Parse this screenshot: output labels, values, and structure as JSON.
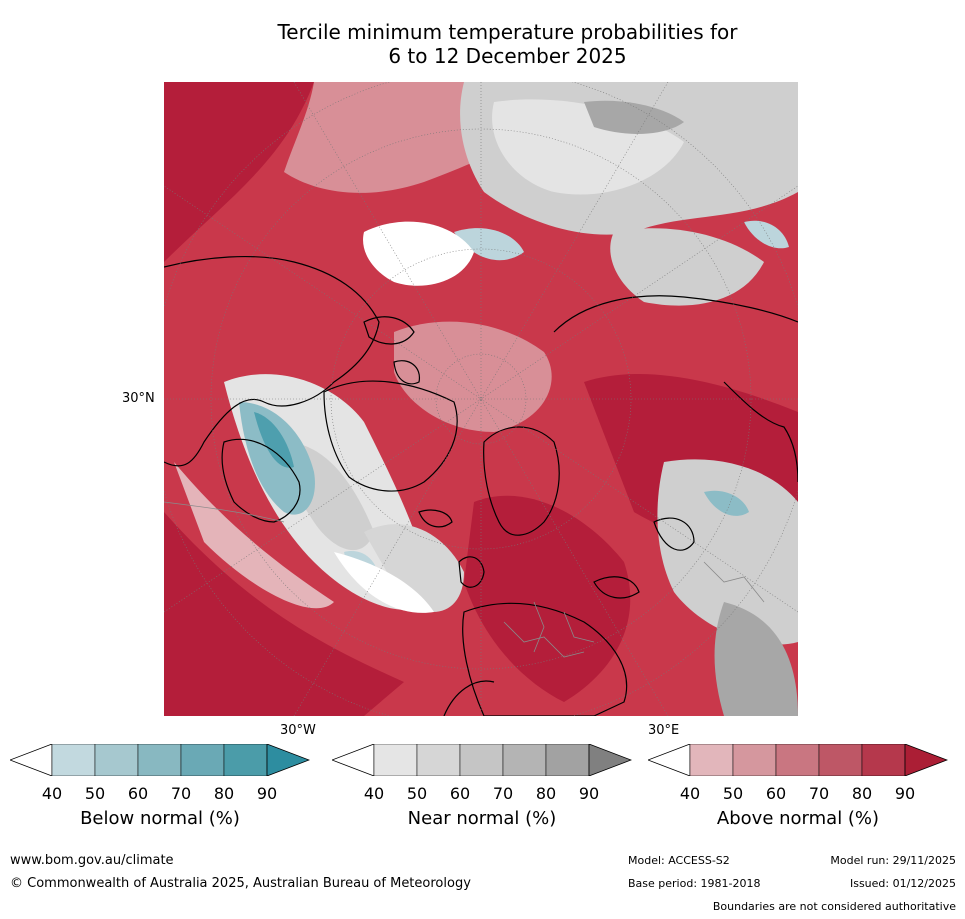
{
  "title_line1": "Tercile minimum temperature probabilities for",
  "title_line2": "6 to 12 December 2025",
  "map": {
    "projection": "north polar stereographic",
    "lat_label": "30°N",
    "lon_labels": [
      "30°W",
      "30°E"
    ],
    "colors": {
      "ocean_base": "#c9384b",
      "dark_red": "#b41e3a",
      "mid_red": "#c8505f",
      "light_red": "#d88f97",
      "pale_red": "#e4b4b9",
      "near_light": "#e4e4e4",
      "near_mid": "#cfcfcf",
      "near_dark": "#a7a7a7",
      "blue_light": "#bcd5dc",
      "blue_mid": "#8cbcc6",
      "blue_dark": "#4e9fae",
      "coast": "#000000",
      "borders": "#8a8a8a",
      "grid": "#777777"
    }
  },
  "legend": [
    {
      "label": "Below normal (%)",
      "ticks": [
        "40",
        "50",
        "60",
        "70",
        "80",
        "90"
      ],
      "colors": [
        "#ffffff",
        "#c2d9df",
        "#a6c8cf",
        "#88b8c1",
        "#6aa9b5",
        "#4b9ca9",
        "#2d8da0"
      ]
    },
    {
      "label": "Near normal (%)",
      "ticks": [
        "40",
        "50",
        "60",
        "70",
        "80",
        "90"
      ],
      "colors": [
        "#ffffff",
        "#e5e5e5",
        "#d6d6d6",
        "#c5c5c5",
        "#b4b4b4",
        "#a2a2a2",
        "#808080"
      ]
    },
    {
      "label": "Above normal (%)",
      "ticks": [
        "40",
        "50",
        "60",
        "70",
        "80",
        "90"
      ],
      "colors": [
        "#ffffff",
        "#e2b6bb",
        "#d5979e",
        "#c97681",
        "#be5766",
        "#b5384c",
        "#ab1e35"
      ]
    }
  ],
  "footer": {
    "website": "www.bom.gov.au/climate",
    "copyright": "© Commonwealth of Australia 2025, Australian Bureau of Meteorology",
    "model": "Model: ACCESS-S2",
    "model_run": "Model run: 29/11/2025",
    "base_period": "Base period: 1981-2018",
    "issued": "Issued: 01/12/2025",
    "disclaimer": "Boundaries are not considered authoritative"
  }
}
